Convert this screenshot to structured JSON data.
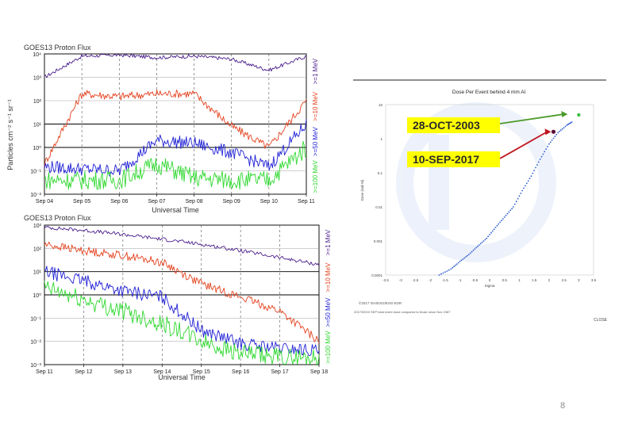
{
  "slide": {
    "page_number": "8"
  },
  "colors": {
    "purple": "#4b1e8c",
    "red": "#e4421e",
    "blue": "#1f1fd6",
    "green": "#2fd82f",
    "dose_points": "#2a5bd0",
    "arrow_green": "#4c9a2a",
    "arrow_red": "#c0161d",
    "label_bg": "#ffff00"
  },
  "chart_data": [
    {
      "type": "line",
      "title": "GOES13 Proton Flux",
      "xlabel": "Universal Time",
      "ylabel": "Particles cm⁻² s⁻¹ sr⁻¹",
      "y_scale": "log",
      "ylim": [
        0.01,
        10000
      ],
      "y_tick_labels": [
        "10⁴",
        "10³",
        "10²",
        "10¹",
        "10⁰",
        "10⁻¹",
        "10⁻²"
      ],
      "categories": [
        "Sep 04",
        "Sep 05",
        "Sep 06",
        "Sep 07",
        "Sep 08",
        "Sep 09",
        "Sep 10",
        "Sep 11"
      ],
      "series": [
        {
          "name": ">=1 MeV",
          "values": [
            1000,
            8000,
            9000,
            7000,
            8000,
            6000,
            2000,
            8000
          ]
        },
        {
          "name": ">=10 MeV",
          "values": [
            0.2,
            200,
            150,
            200,
            200,
            8,
            1,
            100
          ]
        },
        {
          "name": ">=50 MeV",
          "values": [
            0.15,
            0.12,
            0.1,
            2,
            1.5,
            0.6,
            0.15,
            10
          ]
        },
        {
          "name": ">=100 MeV",
          "values": [
            0.04,
            0.04,
            0.04,
            0.2,
            0.05,
            0.04,
            0.04,
            1
          ]
        }
      ],
      "legend": {
        "placement": "right",
        "labels": [
          ">=1 MeV",
          ">=10 MeV",
          ">=50 MeV",
          ">=100 MeV"
        ]
      },
      "grid": true
    },
    {
      "type": "line",
      "title": "GOES13 Proton Flux",
      "xlabel": "Universal Time",
      "ylabel": "",
      "y_scale": "log",
      "ylim": [
        0.001,
        1000
      ],
      "y_tick_labels": [
        "10³",
        "10²",
        "10¹",
        "10⁰",
        "10⁻¹",
        "10⁻²",
        "10⁻³"
      ],
      "categories": [
        "Sep 11",
        "Sep 12",
        "Sep 13",
        "Sep 14",
        "Sep 15",
        "Sep 16",
        "Sep 17",
        "Sep 18"
      ],
      "series": [
        {
          "name": ">=1 MeV",
          "values": [
            800,
            600,
            400,
            250,
            150,
            80,
            40,
            20
          ]
        },
        {
          "name": ">=10 MeV",
          "values": [
            150,
            80,
            50,
            25,
            3,
            0.8,
            0.2,
            0.01
          ]
        },
        {
          "name": ">=50 MeV",
          "values": [
            10,
            4,
            1.5,
            0.8,
            0.03,
            0.008,
            0.005,
            0.004
          ]
        },
        {
          "name": ">=100 MeV",
          "values": [
            2,
            0.6,
            0.2,
            0.06,
            0.01,
            0.003,
            0.002,
            0.002
          ]
        }
      ],
      "legend": {
        "placement": "right",
        "labels": [
          ">=1 MeV",
          ">=10 MeV",
          ">=50 MeV",
          ">=100 MeV"
        ]
      },
      "grid": true
    },
    {
      "type": "scatter",
      "title": "Dose Per Event behind 4 mm Al",
      "xlabel": "Sigma",
      "ylabel": "Dose (rad-Si)",
      "x_tick_labels": [
        "-3.5",
        "-3",
        "-2.5",
        "-2",
        "-1.5",
        "-1",
        "-0.5",
        "0",
        "0.5",
        "1",
        "1.5",
        "2",
        "2.5",
        "3",
        "3.5"
      ],
      "y_tick_labels": [
        "10",
        "1",
        "0.1",
        "0.01",
        "0.001",
        "0.0001"
      ],
      "xlim": [
        -3.5,
        3.5
      ],
      "y_scale": "log",
      "ylim": [
        0.0001,
        10
      ],
      "points": [
        {
          "x": -1.7,
          "y": 0.0001
        },
        {
          "x": -1.3,
          "y": 0.00015
        },
        {
          "x": -1.0,
          "y": 0.00025
        },
        {
          "x": -0.7,
          "y": 0.0004
        },
        {
          "x": -0.4,
          "y": 0.0007
        },
        {
          "x": -0.1,
          "y": 0.0012
        },
        {
          "x": 0.2,
          "y": 0.0025
        },
        {
          "x": 0.5,
          "y": 0.005
        },
        {
          "x": 0.8,
          "y": 0.01
        },
        {
          "x": 1.1,
          "y": 0.03
        },
        {
          "x": 1.4,
          "y": 0.08
        },
        {
          "x": 1.7,
          "y": 0.25
        },
        {
          "x": 2.0,
          "y": 0.7
        },
        {
          "x": 2.3,
          "y": 1.5
        },
        {
          "x": 2.6,
          "y": 2.5
        },
        {
          "x": 2.8,
          "y": 3.2
        }
      ],
      "highlights": [
        {
          "label": "28-OCT-2003",
          "x": 3.0,
          "y": 5
        },
        {
          "label": "10-SEP-2017",
          "x": 2.15,
          "y": 1.6
        }
      ],
      "footnotes": [
        "©2017 ISA/ESG/ESG-ESR",
        "2017/09/10 SEP total event dose compared to those since Nov 1987"
      ],
      "close_label": "CLOSE"
    }
  ]
}
